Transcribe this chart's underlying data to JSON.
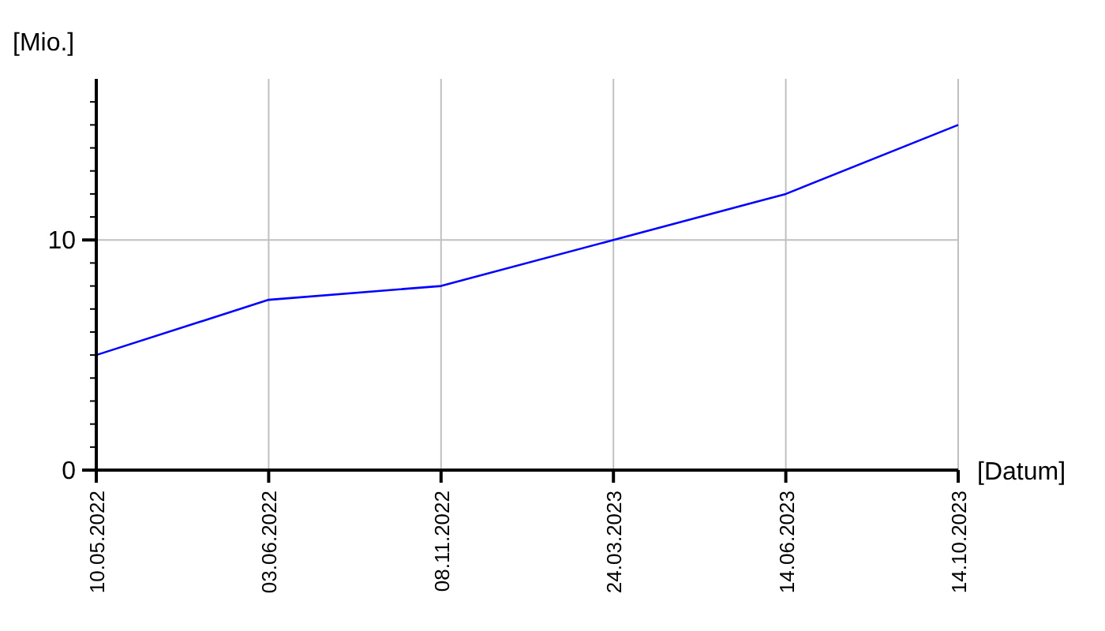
{
  "chart_data": {
    "type": "line",
    "xlabel": "[Datum]",
    "ylabel": "[Mio.]",
    "categories": [
      "10.05.2022",
      "03.06.2022",
      "08.11.2022",
      "24.03.2023",
      "14.06.2023",
      "14.10.2023"
    ],
    "series": [
      {
        "color": "#0000ff",
        "values": [
          5,
          7.4,
          8,
          10,
          12,
          15
        ]
      }
    ],
    "ylim": [
      0,
      17
    ],
    "yticks": [
      0,
      {
        "value": 1,
        "label": null
      },
      {
        "value": 2,
        "label": null
      },
      {
        "value": 3,
        "label": null
      },
      {
        "value": 4,
        "label": null
      },
      {
        "value": 5,
        "label": null
      },
      {
        "value": 6,
        "label": null
      },
      {
        "value": 7,
        "label": null
      },
      {
        "value": 8,
        "label": null
      },
      {
        "value": 9,
        "label": null
      },
      10,
      {
        "value": 11,
        "label": null
      },
      {
        "value": 12,
        "label": null
      },
      {
        "value": 13,
        "label": null
      },
      {
        "value": 14,
        "label": null
      },
      {
        "value": 15,
        "label": null
      },
      {
        "value": 16,
        "label": null
      }
    ],
    "grid": true,
    "marker": "none",
    "line_style": "solid"
  }
}
